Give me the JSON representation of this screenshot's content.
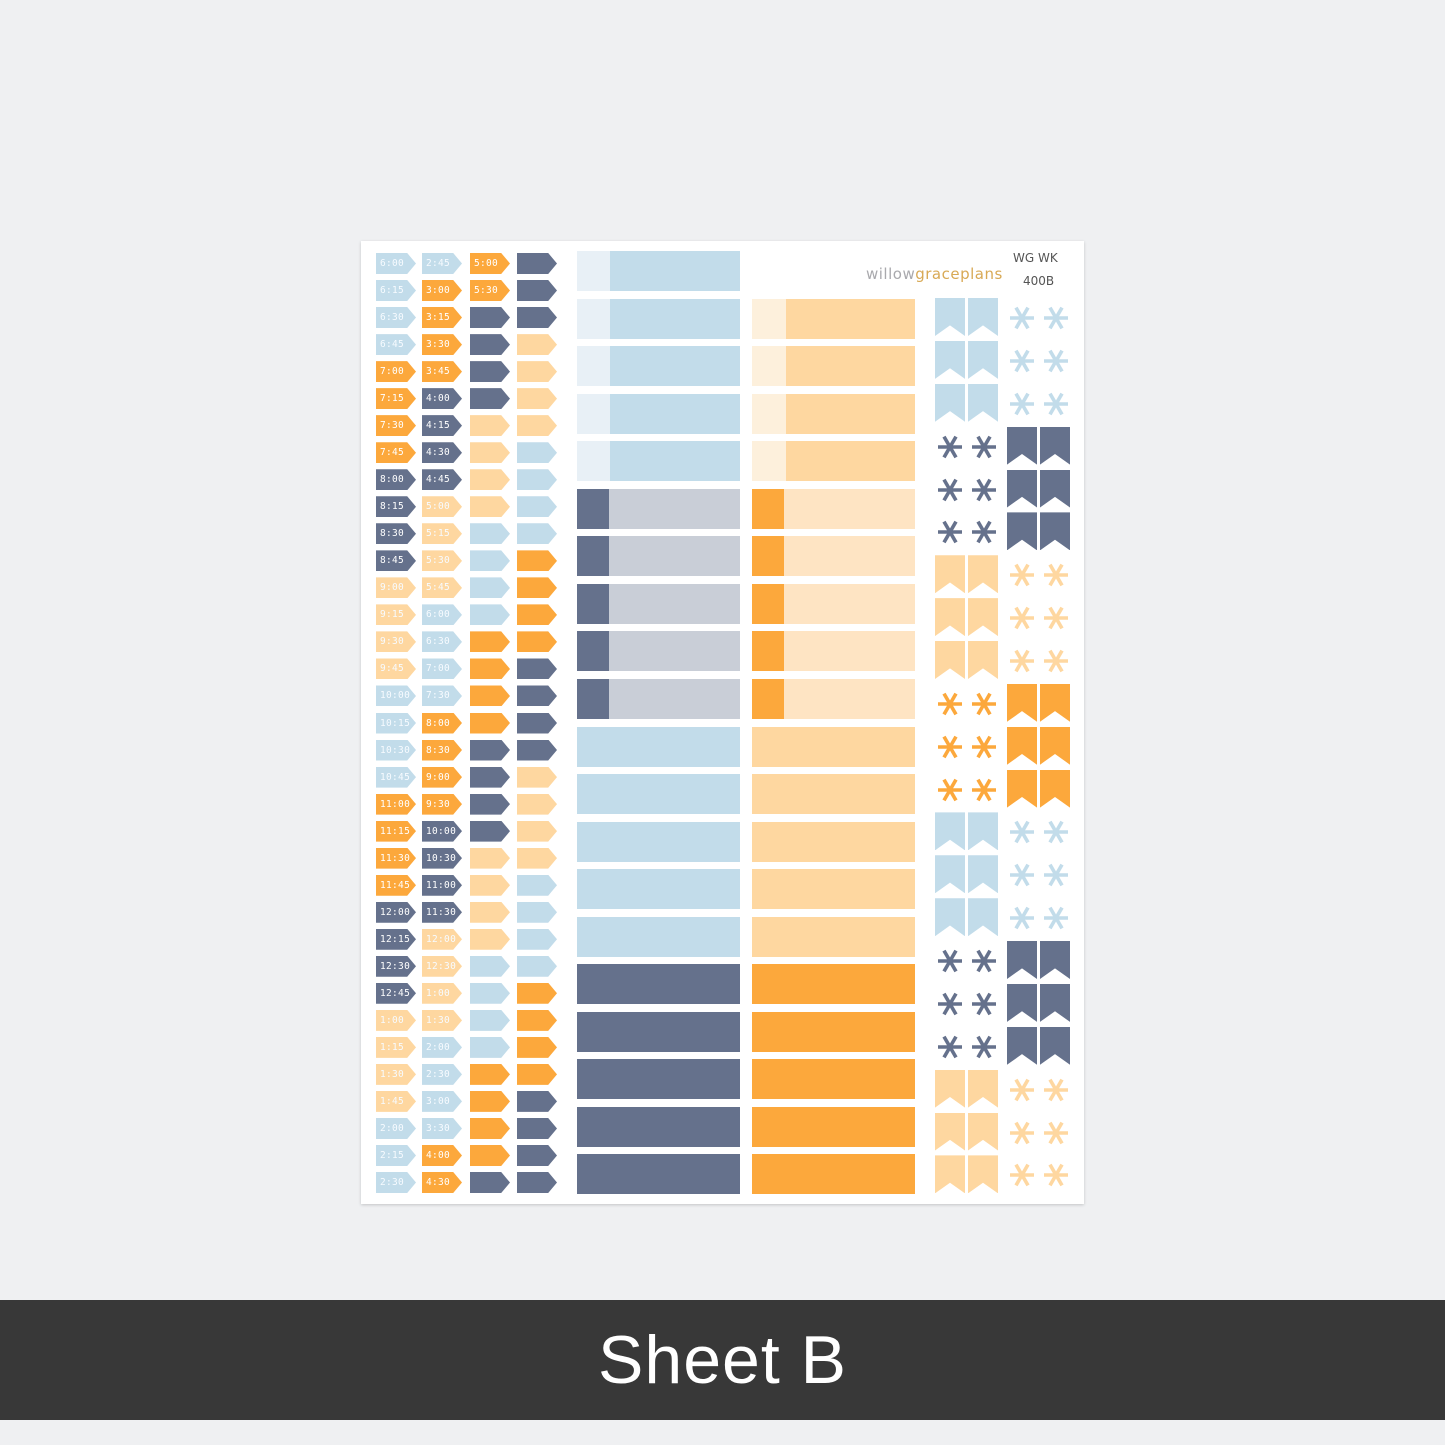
{
  "colors": {
    "L": "#c2dcea",
    "O": "#fca83c",
    "N": "#65718c",
    "P": "#fed7a0",
    "Lstub": "#e8f0f6",
    "Grey": "#c9ced7",
    "Pstub": "#fdf0dc",
    "Plight": "#fee4c3"
  },
  "header": {
    "brand_part1": "willow",
    "brand_part2": "graceplans",
    "code_line1": "WG WK",
    "code_line2": "400B"
  },
  "time_flags": {
    "col1": {
      "labels": [
        "6:00",
        "6:15",
        "6:30",
        "6:45",
        "7:00",
        "7:15",
        "7:30",
        "7:45",
        "8:00",
        "8:15",
        "8:30",
        "8:45",
        "9:00",
        "9:15",
        "9:30",
        "9:45",
        "10:00",
        "10:15",
        "10:30",
        "10:45",
        "11:00",
        "11:15",
        "11:30",
        "11:45",
        "12:00",
        "12:15",
        "12:30",
        "12:45",
        "1:00",
        "1:15",
        "1:30",
        "1:45",
        "2:00",
        "2:15",
        "2:30"
      ],
      "colors": "LLLLOOOONNNNPPPPLLLLOOOONNNNPPPPLLL"
    },
    "col2": {
      "labels": [
        "2:45",
        "3:00",
        "3:15",
        "3:30",
        "3:45",
        "4:00",
        "4:15",
        "4:30",
        "4:45",
        "5:00",
        "5:15",
        "5:30",
        "5:45",
        "6:00",
        "6:30",
        "7:00",
        "7:30",
        "8:00",
        "8:30",
        "9:00",
        "9:30",
        "10:00",
        "10:30",
        "11:00",
        "11:30",
        "12:00",
        "12:30",
        "1:00",
        "1:30",
        "2:00",
        "2:30",
        "3:00",
        "3:30",
        "4:00",
        "4:30"
      ],
      "colors": "LOOOONNNNPPPPLLLLOOOONNNNPPPPLLLLOO"
    },
    "col3": {
      "labels": [
        "5:00",
        "5:30"
      ],
      "colors": "OONNNNPPPPLLLLOOOONNNNPPPPLLLLOOOON"
    },
    "col4": {
      "labels": [],
      "colors": "NNNPPPPLLLLOOOONNNNPPPPLLLLOOOONNNN"
    }
  },
  "boxes": {
    "left": [
      "Ls",
      "Ls",
      "Ls",
      "Ls",
      "Ls",
      "Ng",
      "Ng",
      "Ng",
      "Ng",
      "Ng",
      "L",
      "L",
      "L",
      "L",
      "L",
      "N",
      "N",
      "N",
      "N",
      "N"
    ],
    "right": [
      "",
      "Ps",
      "Ps",
      "Ps",
      "Ps",
      "Op",
      "Op",
      "Op",
      "Op",
      "Op",
      "P",
      "P",
      "P",
      "P",
      "P",
      "O",
      "O",
      "O",
      "O",
      "O"
    ]
  },
  "deco": {
    "colA": [
      {
        "type": "banner",
        "color": "L"
      },
      {
        "type": "asterisk",
        "color": "N"
      },
      {
        "type": "banner",
        "color": "P"
      },
      {
        "type": "asterisk",
        "color": "O"
      },
      {
        "type": "banner",
        "color": "L"
      },
      {
        "type": "asterisk",
        "color": "N"
      },
      {
        "type": "banner",
        "color": "P"
      }
    ],
    "colB": [
      {
        "type": "asterisk",
        "color": "L"
      },
      {
        "type": "banner",
        "color": "N"
      },
      {
        "type": "asterisk",
        "color": "P"
      },
      {
        "type": "banner",
        "color": "O"
      },
      {
        "type": "asterisk",
        "color": "L"
      },
      {
        "type": "banner",
        "color": "N"
      },
      {
        "type": "asterisk",
        "color": "P"
      }
    ]
  },
  "footer": {
    "label": "Sheet B"
  }
}
